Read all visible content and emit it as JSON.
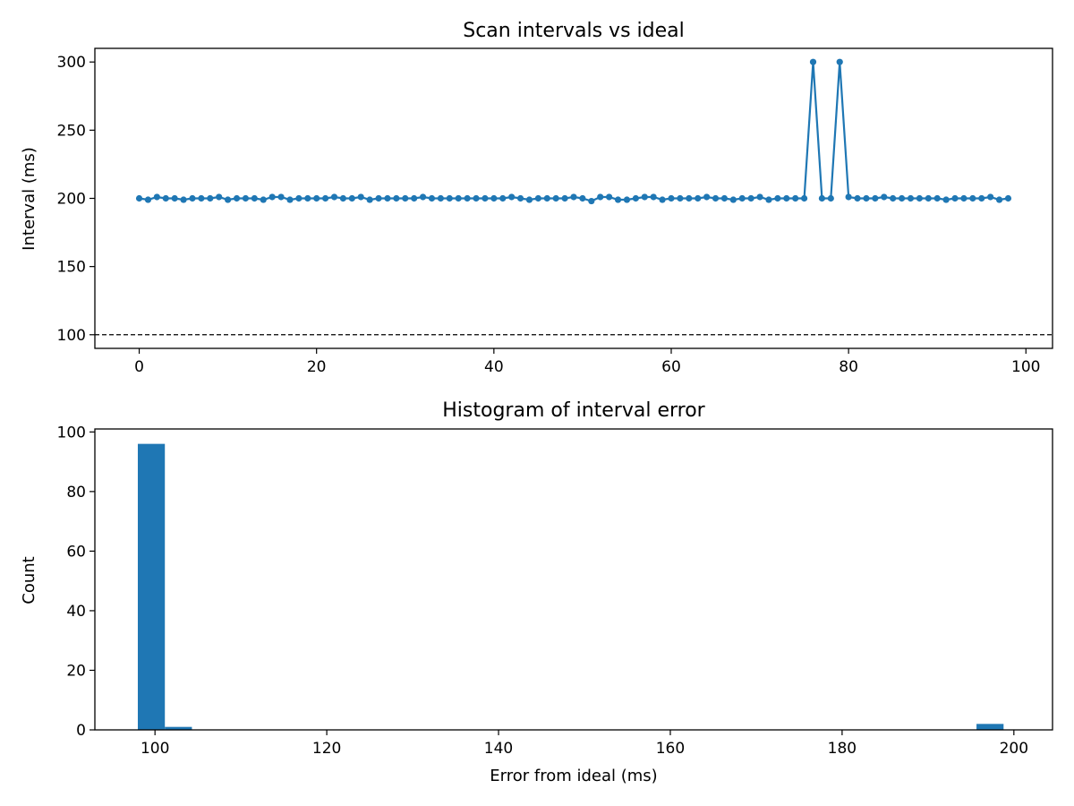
{
  "colors": {
    "series": "#1f77b4",
    "axis": "#000000",
    "reference": "#000000"
  },
  "chart_data": [
    {
      "type": "line",
      "title": "Scan intervals vs ideal",
      "xlabel": "",
      "ylabel": "Interval (ms)",
      "xlim": [
        -5,
        103
      ],
      "ylim": [
        90,
        310
      ],
      "xticks": [
        0,
        20,
        40,
        60,
        80,
        100
      ],
      "yticks": [
        100,
        150,
        200,
        250,
        300
      ],
      "xtick_labels": [
        "0",
        "20",
        "40",
        "60",
        "80",
        "100"
      ],
      "ytick_labels": [
        "100",
        "150",
        "200",
        "250",
        "300"
      ],
      "reference_line": {
        "y": 100,
        "style": "dashed"
      },
      "series": [
        {
          "name": "interval",
          "marker": "circle",
          "x": [
            0,
            1,
            2,
            3,
            4,
            5,
            6,
            7,
            8,
            9,
            10,
            11,
            12,
            13,
            14,
            15,
            16,
            17,
            18,
            19,
            20,
            21,
            22,
            23,
            24,
            25,
            26,
            27,
            28,
            29,
            30,
            31,
            32,
            33,
            34,
            35,
            36,
            37,
            38,
            39,
            40,
            41,
            42,
            43,
            44,
            45,
            46,
            47,
            48,
            49,
            50,
            51,
            52,
            53,
            54,
            55,
            56,
            57,
            58,
            59,
            60,
            61,
            62,
            63,
            64,
            65,
            66,
            67,
            68,
            69,
            70,
            71,
            72,
            73,
            74,
            75,
            76,
            77,
            78,
            79,
            80,
            81,
            82,
            83,
            84,
            85,
            86,
            87,
            88,
            89,
            90,
            91,
            92,
            93,
            94,
            95,
            96,
            97,
            98
          ],
          "values": [
            200,
            199,
            201,
            200,
            200,
            199,
            200,
            200,
            200,
            201,
            199,
            200,
            200,
            200,
            199,
            201,
            201,
            199,
            200,
            200,
            200,
            200,
            201,
            200,
            200,
            201,
            199,
            200,
            200,
            200,
            200,
            200,
            201,
            200,
            200,
            200,
            200,
            200,
            200,
            200,
            200,
            200,
            201,
            200,
            199,
            200,
            200,
            200,
            200,
            201,
            200,
            198,
            201,
            201,
            199,
            199,
            200,
            201,
            201,
            199,
            200,
            200,
            200,
            200,
            201,
            200,
            200,
            199,
            200,
            200,
            201,
            199,
            200,
            200,
            200,
            200,
            300,
            200,
            200,
            300,
            201,
            200,
            200,
            200,
            201,
            200,
            200,
            200,
            200,
            200,
            200,
            199,
            200,
            200,
            200,
            200,
            201,
            199,
            200
          ]
        }
      ]
    },
    {
      "type": "bar",
      "subtype": "histogram",
      "title": "Histogram of interval error",
      "xlabel": "Error from ideal (ms)",
      "ylabel": "Count",
      "xlim": [
        93,
        204.5
      ],
      "ylim": [
        0,
        101
      ],
      "xticks": [
        100,
        120,
        140,
        160,
        180,
        200
      ],
      "yticks": [
        0,
        20,
        40,
        60,
        80,
        100
      ],
      "xtick_labels": [
        "100",
        "120",
        "140",
        "160",
        "180",
        "200"
      ],
      "ytick_labels": [
        "0",
        "20",
        "40",
        "60",
        "80",
        "100"
      ],
      "bin_width": 3.15,
      "bin_starts": [
        98.0,
        101.15,
        104.3,
        107.45,
        110.6,
        113.75,
        116.9,
        120.05,
        123.2,
        126.35,
        129.5,
        132.65,
        135.8,
        138.95,
        142.1,
        145.25,
        148.4,
        151.55,
        154.7,
        157.85,
        161.0,
        164.15,
        167.3,
        170.45,
        173.6,
        176.75,
        179.9,
        183.05,
        186.2,
        189.35,
        192.5,
        195.65,
        198.8
      ],
      "counts": [
        96,
        1,
        0,
        0,
        0,
        0,
        0,
        0,
        0,
        0,
        0,
        0,
        0,
        0,
        0,
        0,
        0,
        0,
        0,
        0,
        0,
        0,
        0,
        0,
        0,
        0,
        0,
        0,
        0,
        0,
        0,
        2,
        0
      ]
    }
  ]
}
